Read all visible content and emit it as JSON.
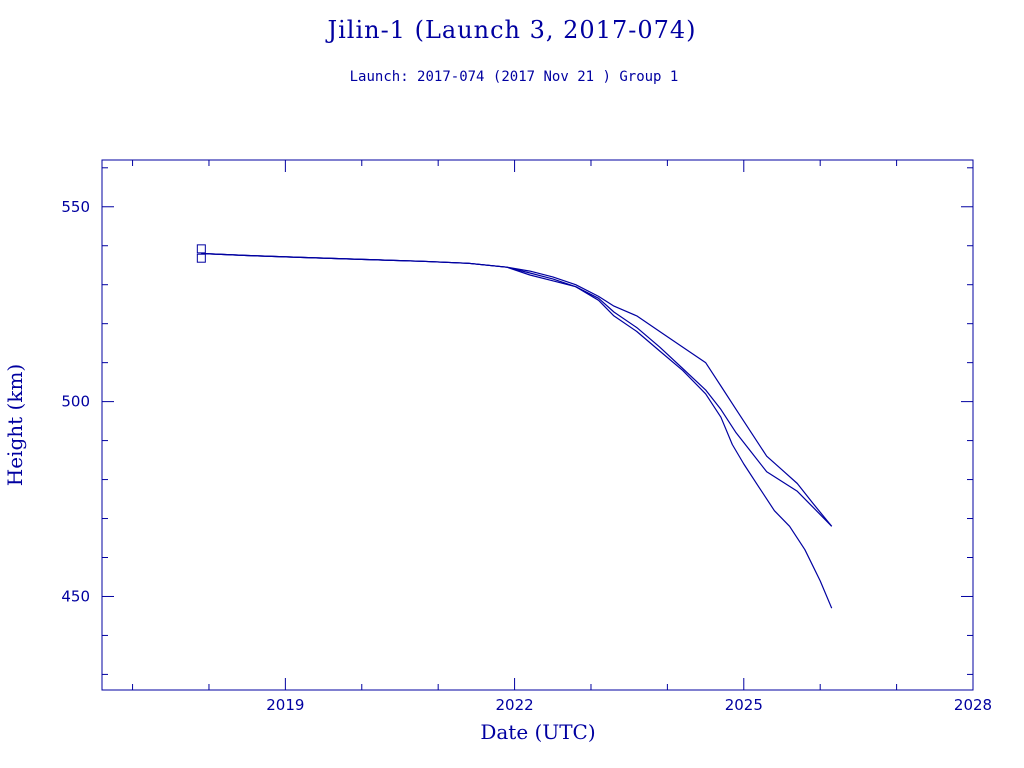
{
  "chart_data": {
    "type": "line",
    "title": "Jilin-1 (Launch 3, 2017-074)",
    "subtitle": "Launch: 2017-074  (2017 Nov 21 )  Group 1",
    "xlabel": "Date (UTC)",
    "ylabel": "Height (km)",
    "xlim": [
      2016.6,
      2028.0
    ],
    "ylim": [
      426.0,
      562.0
    ],
    "x_ticks": [
      2019,
      2022,
      2025,
      2028
    ],
    "y_ticks": [
      450,
      500,
      550
    ],
    "legend": "none",
    "grid": false,
    "color": "#0000a0",
    "series": [
      {
        "x": [
          2017.9,
          2018.5,
          2019.2,
          2020.0,
          2020.8,
          2021.4,
          2021.9,
          2022.2,
          2022.5,
          2022.8,
          2023.1,
          2023.3,
          2023.6,
          2023.9,
          2024.2,
          2024.5,
          2024.7,
          2024.85,
          2025.0,
          2025.2,
          2025.4,
          2025.6,
          2025.8,
          2026.0,
          2026.15
        ],
        "y": [
          538,
          537.5,
          537,
          536.5,
          536,
          535.5,
          534.5,
          533,
          531.5,
          529.5,
          526,
          522,
          518,
          513,
          508,
          502,
          496,
          489,
          484,
          478,
          472,
          468,
          462,
          454,
          447
        ]
      },
      {
        "x": [
          2017.9,
          2018.5,
          2019.2,
          2020.0,
          2020.8,
          2021.4,
          2021.9,
          2022.2,
          2022.5,
          2022.8,
          2023.1,
          2023.3,
          2023.6,
          2023.9,
          2024.2,
          2024.5,
          2024.7,
          2024.9,
          2025.1,
          2025.3,
          2025.5,
          2025.7,
          2025.9,
          2026.15
        ],
        "y": [
          538,
          537.5,
          537,
          536.5,
          536,
          535.5,
          534.5,
          532.5,
          531,
          529.5,
          526.5,
          523,
          519,
          514,
          508.5,
          503,
          498,
          492,
          487,
          482,
          479.5,
          477,
          473,
          468
        ]
      },
      {
        "x": [
          2017.9,
          2018.5,
          2019.2,
          2020.0,
          2020.8,
          2021.4,
          2021.9,
          2022.2,
          2022.5,
          2022.8,
          2023.1,
          2023.3,
          2023.6,
          2023.9,
          2024.2,
          2024.5,
          2024.7,
          2024.9,
          2025.1,
          2025.3,
          2025.5,
          2025.7,
          2025.9,
          2026.15
        ],
        "y": [
          538,
          537.5,
          537,
          536.5,
          536,
          535.5,
          534.5,
          533.5,
          532,
          530,
          527,
          524.5,
          522,
          518,
          514,
          510,
          504,
          498,
          492,
          486,
          482.5,
          479,
          474,
          468
        ]
      }
    ],
    "markers": [
      {
        "x": 2017.9,
        "y": 539.2
      },
      {
        "x": 2017.9,
        "y": 536.8
      }
    ]
  }
}
